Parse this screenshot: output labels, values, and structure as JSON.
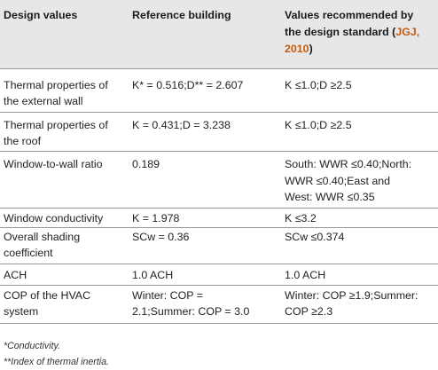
{
  "table": {
    "headers": {
      "col1": "Design values",
      "col2": "Reference building",
      "col3_line1": "Values recommended by",
      "col3_line2_prefix": "the design standard (",
      "col3_citation_a": "JGJ,",
      "col3_citation_b": "2010",
      "col3_line3_suffix": ")"
    },
    "rows": [
      {
        "label": [
          "Thermal properties of",
          "the external wall"
        ],
        "reference": [
          "K* = 0.516;D** = 2.607"
        ],
        "recommended": [
          "K ≤1.0;D ≥2.5"
        ]
      },
      {
        "label": [
          "Thermal properties of",
          "the roof"
        ],
        "reference": [
          "K = 0.431;D = 3.238"
        ],
        "recommended": [
          "K ≤1.0;D ≥2.5"
        ]
      },
      {
        "label": [
          "Window-to-wall ratio"
        ],
        "reference": [
          "0.189"
        ],
        "recommended": [
          "South: WWR ≤0.40;North:",
          "WWR ≤0.40;East and",
          "West: WWR ≤0.35"
        ]
      },
      {
        "label": [
          "Window conductivity"
        ],
        "reference": [
          "K = 1.978"
        ],
        "recommended": [
          "K ≤3.2"
        ]
      },
      {
        "label": [
          "Overall shading",
          "coefficient"
        ],
        "reference": [
          "SCw = 0.36"
        ],
        "recommended": [
          "SCw ≤0.374"
        ]
      },
      {
        "label": [
          "ACH"
        ],
        "reference": [
          "1.0 ACH"
        ],
        "recommended": [
          "1.0 ACH"
        ]
      },
      {
        "label": [
          "COP of the HVAC",
          "system"
        ],
        "reference": [
          "Winter: COP =",
          "2.1;Summer: COP = 3.0"
        ],
        "recommended": [
          "Winter: COP ≥1.9;Summer:",
          "COP ≥2.3"
        ]
      }
    ]
  },
  "footnotes": [
    "*Conductivity.",
    "**Index of thermal inertia."
  ]
}
